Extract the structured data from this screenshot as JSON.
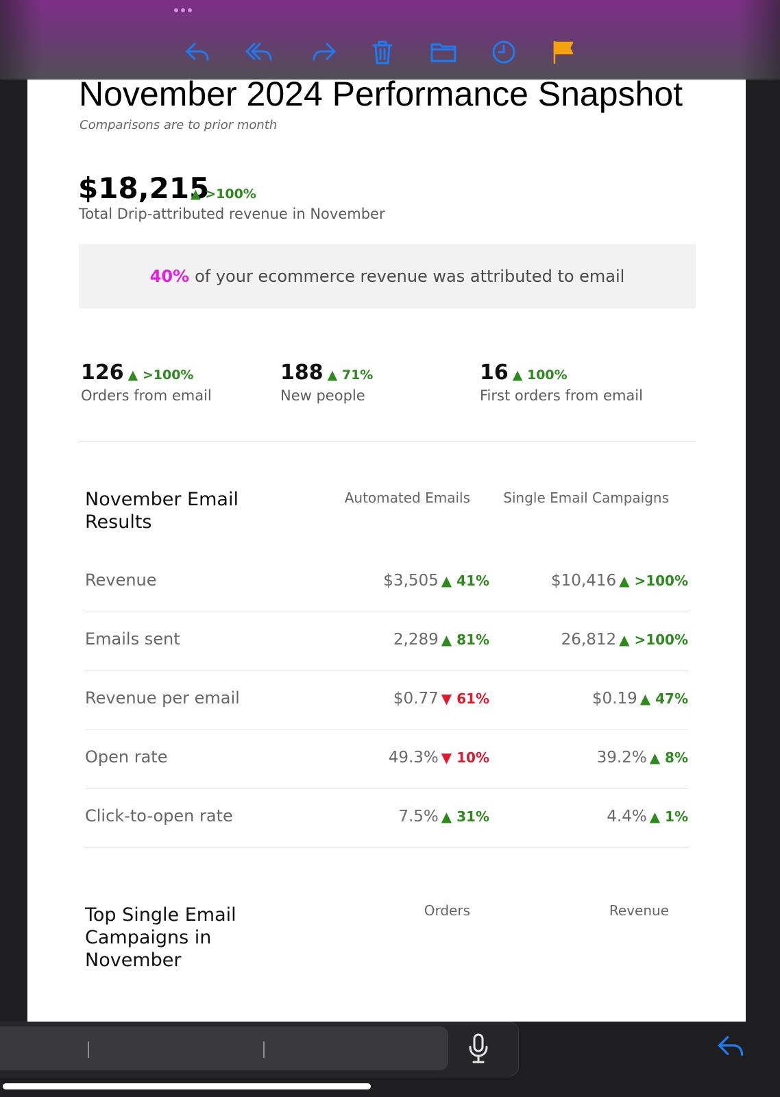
{
  "toolbar": {
    "icons": [
      "reply-icon",
      "reply-all-icon",
      "forward-icon",
      "trash-icon",
      "folder-icon",
      "clock-icon",
      "flag-icon"
    ],
    "accent": "#1e7bf0",
    "flag_color": "#f5a00e"
  },
  "email": {
    "title": "November 2024 Performance Snapshot",
    "subtitle": "Comparisons are to prior month",
    "revenue": {
      "value": "$18,215",
      "change": "▲ >100%",
      "label": "Total Drip-attributed revenue in November"
    },
    "callout": {
      "pct": "40%",
      "text": "of your ecommerce revenue was attributed to email"
    },
    "stats": [
      {
        "value": "126",
        "change": "▲ >100%",
        "label": "Orders from email"
      },
      {
        "value": "188",
        "change": "▲ 71%",
        "label": "New people"
      },
      {
        "value": "16",
        "change": "▲ 100%",
        "label": "First orders from email"
      }
    ],
    "results": {
      "heading": "November Email Results",
      "col1": "Automated Emails",
      "col2": "Single Email Campaigns",
      "rows": [
        {
          "label": "Revenue",
          "a_val": "$3,505",
          "a_chg": "▲ 41%",
          "a_dir": "up",
          "b_val": "$10,416",
          "b_chg": "▲ >100%",
          "b_dir": "up"
        },
        {
          "label": "Emails sent",
          "a_val": "2,289",
          "a_chg": "▲ 81%",
          "a_dir": "up",
          "b_val": "26,812",
          "b_chg": "▲ >100%",
          "b_dir": "up"
        },
        {
          "label": "Revenue per email",
          "a_val": "$0.77",
          "a_chg": "▼ 61%",
          "a_dir": "down",
          "b_val": "$0.19",
          "b_chg": "▲ 47%",
          "b_dir": "up"
        },
        {
          "label": "Open rate",
          "a_val": "49.3%",
          "a_chg": "▼ 10%",
          "a_dir": "down",
          "b_val": "39.2%",
          "b_chg": "▲ 8%",
          "b_dir": "up"
        },
        {
          "label": "Click-to-open rate",
          "a_val": "7.5%",
          "a_chg": "▲ 31%",
          "a_dir": "up",
          "b_val": "4.4%",
          "b_chg": "▲ 1%",
          "b_dir": "up"
        }
      ]
    },
    "campaigns": {
      "heading": "Top Single Email Campaigns in November",
      "col1": "Orders",
      "col2": "Revenue"
    }
  },
  "composer": {
    "mic_icon": "microphone-icon",
    "reply_icon": "reply-icon"
  },
  "colors": {
    "up": "#2e8a1e",
    "down": "#e0192d",
    "highlight": "#e31ee0"
  }
}
